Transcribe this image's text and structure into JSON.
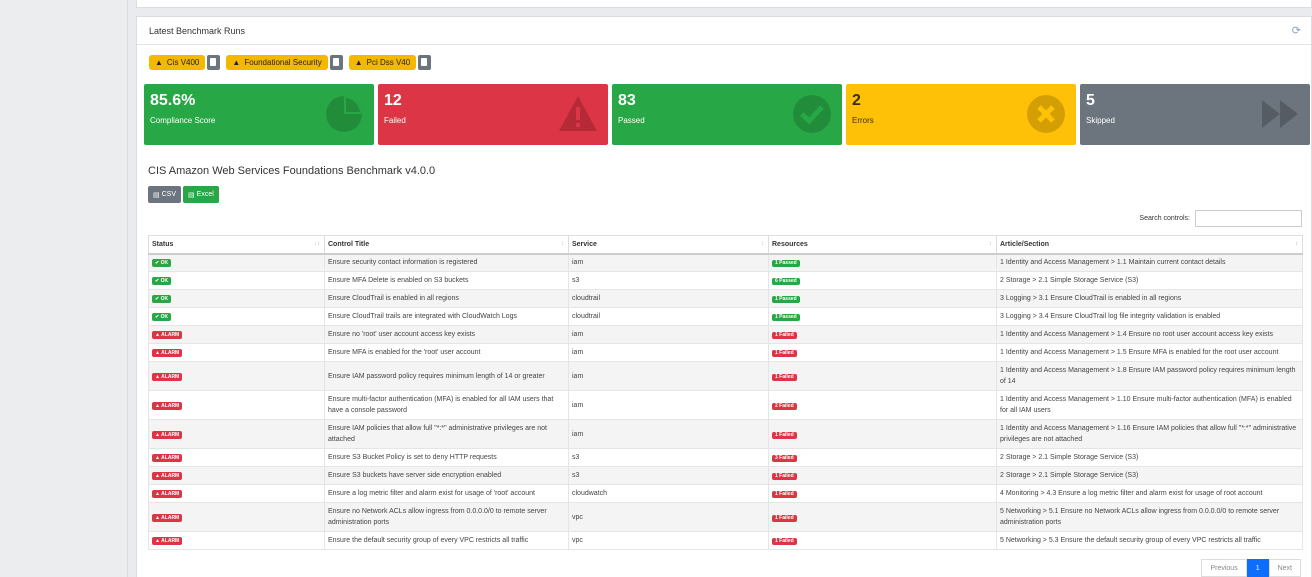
{
  "panel": {
    "title": "Latest Benchmark Runs"
  },
  "frameworks": [
    "Cis V400",
    "Foundational Security",
    "Pci Dss V40"
  ],
  "cards": [
    {
      "value": "85.6%",
      "label": "Compliance Score",
      "color": "#27a745",
      "icon": "pie-chart-icon"
    },
    {
      "value": "12",
      "label": "Failed",
      "color": "#dc3545",
      "icon": "warning-icon"
    },
    {
      "value": "83",
      "label": "Passed",
      "color": "#27a745",
      "icon": "check-circle-icon"
    },
    {
      "value": "2",
      "label": "Errors",
      "color": "#ffc107",
      "icon": "times-circle-icon"
    },
    {
      "value": "5",
      "label": "Skipped",
      "color": "#6c757d",
      "icon": "fast-forward-icon"
    }
  ],
  "benchmark": {
    "title": "CIS Amazon Web Services Foundations Benchmark v4.0.0",
    "csv_label": "CSV",
    "excel_label": "Excel",
    "search_label": "Search controls:"
  },
  "table": {
    "headers": [
      "Status",
      "Control Title",
      "Service",
      "Resources",
      "Article/Section"
    ],
    "rows": [
      {
        "status": "OK",
        "title": "Ensure security contact information is registered",
        "service": "iam",
        "resources": "1 Passed",
        "section": "1 Identity and Access Management > 1.1 Maintain current contact details"
      },
      {
        "status": "OK",
        "title": "Ensure MFA Delete is enabled on S3 buckets",
        "service": "s3",
        "resources": "6 Passed",
        "section": "2 Storage > 2.1 Simple Storage Service (S3)"
      },
      {
        "status": "OK",
        "title": "Ensure CloudTrail is enabled in all regions",
        "service": "cloudtrail",
        "resources": "1 Passed",
        "section": "3 Logging > 3.1 Ensure CloudTrail is enabled in all regions"
      },
      {
        "status": "OK",
        "title": "Ensure CloudTrail trails are integrated with CloudWatch Logs",
        "service": "cloudtrail",
        "resources": "1 Passed",
        "section": "3 Logging > 3.4 Ensure CloudTrail log file integrity validation is enabled"
      },
      {
        "status": "ALARM",
        "title": "Ensure no 'root' user account access key exists",
        "service": "iam",
        "resources": "1 Failed",
        "section": "1 Identity and Access Management > 1.4 Ensure no root user account access key exists"
      },
      {
        "status": "ALARM",
        "title": "Ensure MFA is enabled for the 'root' user account",
        "service": "iam",
        "resources": "1 Failed",
        "section": "1 Identity and Access Management > 1.5 Ensure MFA is enabled for the root user account"
      },
      {
        "status": "ALARM",
        "title": "Ensure IAM password policy requires minimum length of 14 or greater",
        "service": "iam",
        "resources": "1 Failed",
        "section": "1 Identity and Access Management > 1.8 Ensure IAM password policy requires minimum length of 14"
      },
      {
        "status": "ALARM",
        "title": "Ensure multi-factor authentication (MFA) is enabled for all IAM users that have a console password",
        "service": "iam",
        "resources": "2 Failed",
        "section": "1 Identity and Access Management > 1.10 Ensure multi-factor authentication (MFA) is enabled for all IAM users"
      },
      {
        "status": "ALARM",
        "title": "Ensure IAM policies that allow full \"*:*\" administrative privileges are not attached",
        "service": "iam",
        "resources": "1 Failed",
        "section": "1 Identity and Access Management > 1.16 Ensure IAM policies that allow full \"*:*\" administrative privileges are not attached"
      },
      {
        "status": "ALARM",
        "title": "Ensure S3 Bucket Policy is set to deny HTTP requests",
        "service": "s3",
        "resources": "3 Failed",
        "section": "2 Storage > 2.1 Simple Storage Service (S3)"
      },
      {
        "status": "ALARM",
        "title": "Ensure S3 buckets have server side encryption enabled",
        "service": "s3",
        "resources": "1 Failed",
        "section": "2 Storage > 2.1 Simple Storage Service (S3)"
      },
      {
        "status": "ALARM",
        "title": "Ensure a log metric filter and alarm exist for usage of 'root' account",
        "service": "cloudwatch",
        "resources": "1 Failed",
        "section": "4 Monitoring > 4.3 Ensure a log metric filter and alarm exist for usage of root account"
      },
      {
        "status": "ALARM",
        "title": "Ensure no Network ACLs allow ingress from 0.0.0.0/0 to remote server administration ports",
        "service": "vpc",
        "resources": "1 Failed",
        "section": "5 Networking > 5.1 Ensure no Network ACLs allow ingress from 0.0.0.0/0 to remote server administration ports"
      },
      {
        "status": "ALARM",
        "title": "Ensure the default security group of every VPC restricts all traffic",
        "service": "vpc",
        "resources": "1 Failed",
        "section": "5 Networking > 5.3 Ensure the default security group of every VPC restricts all traffic"
      }
    ]
  },
  "pagination": {
    "previous": "Previous",
    "page": "1",
    "next": "Next"
  }
}
